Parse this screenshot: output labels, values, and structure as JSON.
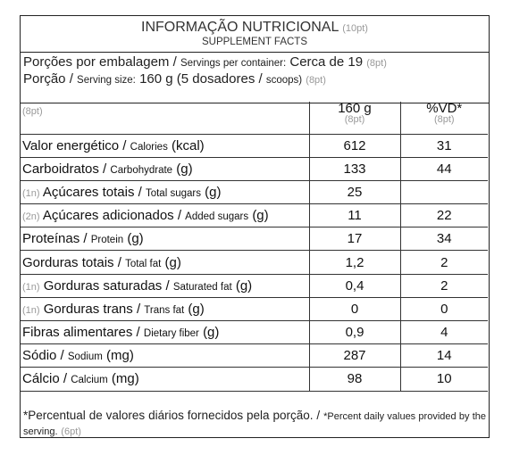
{
  "title": {
    "main": "INFORMAÇÃO NUTRICIONAL",
    "main_size": "(10pt)",
    "sub": "SUPPLEMENT FACTS"
  },
  "servings": {
    "per_container_pt": "Porções por embalagem /",
    "per_container_en": "Servings per container:",
    "per_container_value": "Cerca de 19",
    "per_container_size": "(8pt)",
    "portion_pt": "Porção /",
    "portion_en": "Serving size:",
    "portion_value": "160 g (5 dosadores /",
    "portion_scoops": "scoops)",
    "portion_size": "(8pt)"
  },
  "table": {
    "corner": "(8pt)",
    "col1": "160 g",
    "col1_size": "(8pt)",
    "col2": "%VD*",
    "col2_size": "(8pt)",
    "rows": [
      {
        "prefix": "",
        "pt": "Valor energético /",
        "en": "Calories",
        "unit": "(kcal)",
        "amount": "612",
        "dv": "31"
      },
      {
        "prefix": "",
        "pt": "Carboidratos /",
        "en": "Carbohydrate",
        "unit": "(g)",
        "amount": "133",
        "dv": "44"
      },
      {
        "prefix": "(1n)",
        "pt": "Açúcares totais /",
        "en": "Total sugars",
        "unit": "(g)",
        "amount": "25",
        "dv": ""
      },
      {
        "prefix": "(2n)",
        "pt": "Açúcares adicionados /",
        "en": "Added sugars",
        "unit": "(g)",
        "amount": "11",
        "dv": "22"
      },
      {
        "prefix": "",
        "pt": "Proteínas /",
        "en": "Protein",
        "unit": "(g)",
        "amount": "17",
        "dv": "34"
      },
      {
        "prefix": "",
        "pt": "Gorduras totais /",
        "en": "Total fat",
        "unit": "(g)",
        "amount": "1,2",
        "dv": "2"
      },
      {
        "prefix": "(1n)",
        "pt": "Gorduras saturadas /",
        "en": "Saturated fat",
        "unit": "(g)",
        "amount": "0,4",
        "dv": "2"
      },
      {
        "prefix": "(1n)",
        "pt": "Gorduras trans /",
        "en": "Trans fat",
        "unit": "(g)",
        "amount": "0",
        "dv": "0"
      },
      {
        "prefix": "",
        "pt": "Fibras alimentares /",
        "en": "Dietary fiber",
        "unit": "(g)",
        "amount": "0,9",
        "dv": "4"
      },
      {
        "prefix": "",
        "pt": "Sódio /",
        "en": "Sodium",
        "unit": "(mg)",
        "amount": "287",
        "dv": "14"
      },
      {
        "prefix": "",
        "pt": "Cálcio /",
        "en": "Calcium",
        "unit": "(mg)",
        "amount": "98",
        "dv": "10"
      }
    ]
  },
  "footnote": {
    "pt": "*Percentual de valores diários fornecidos pela porção. /",
    "en": "*Percent daily values provided by the serving.",
    "size": "(6pt)"
  }
}
